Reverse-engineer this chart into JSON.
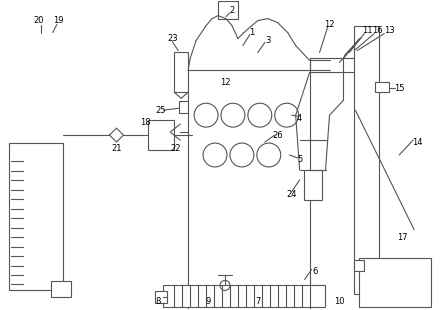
{
  "bg_color": "#ffffff",
  "line_color": "#555555",
  "lw": 0.8,
  "fig_width": 4.43,
  "fig_height": 3.1
}
